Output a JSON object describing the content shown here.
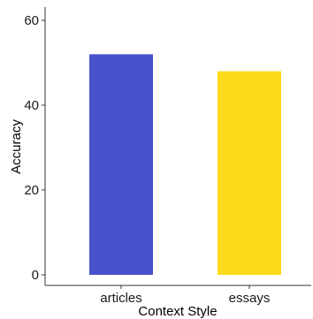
{
  "chart_data": {
    "type": "bar",
    "title": "",
    "xlabel": "Context Style",
    "ylabel": "Accuracy",
    "categories": [
      "articles",
      "essays"
    ],
    "values": [
      52,
      48
    ],
    "bar_colors": [
      "#4752CB",
      "#FDDA1A"
    ],
    "ylim": [
      0,
      63
    ],
    "yticks": [
      0,
      20,
      40,
      60
    ],
    "grid": false,
    "legend": "none"
  },
  "colors": {
    "axis": "#333333",
    "text": "#1a1a1a",
    "background": "#ffffff"
  }
}
